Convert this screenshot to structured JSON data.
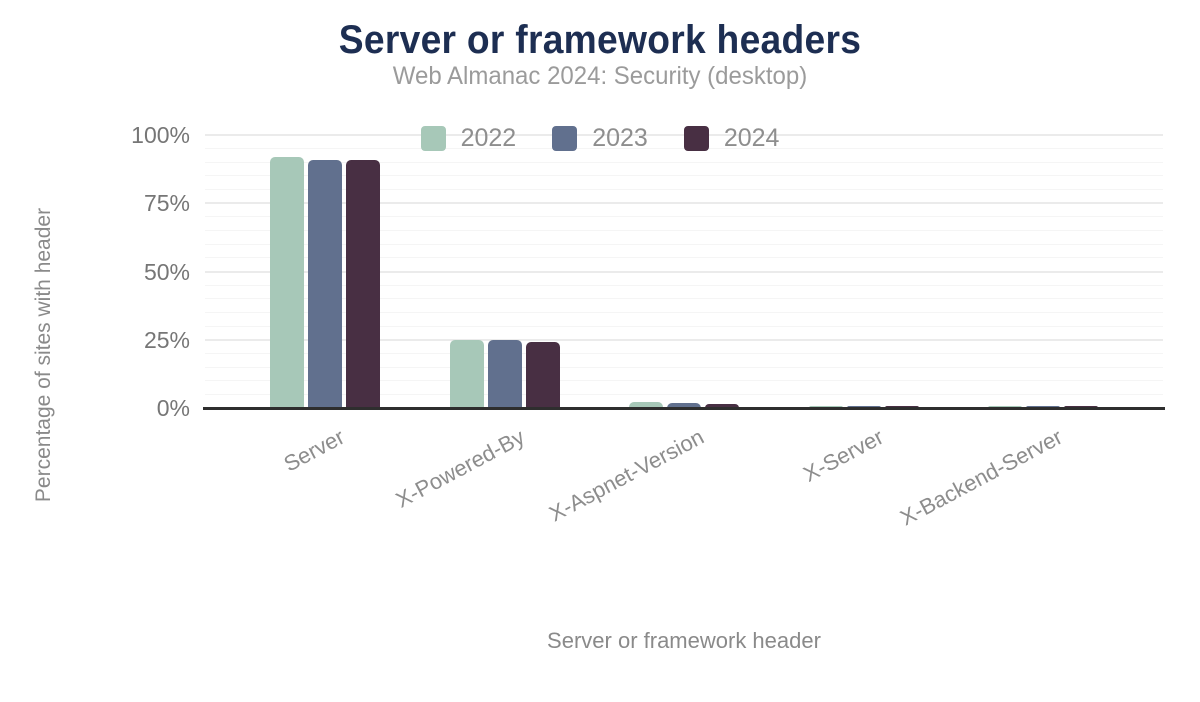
{
  "header": {
    "title": "Server or framework headers",
    "subtitle": "Web Almanac 2024: Security (desktop)"
  },
  "axes": {
    "x_title": "Server or framework header",
    "y_title": "Percentage of sites with header",
    "y_ticks": [
      "0%",
      "25%",
      "50%",
      "75%",
      "100%"
    ]
  },
  "colors": {
    "title_text": "#1d2e52",
    "subtitle_text": "#9b9b9b",
    "axis_text": "#8a8a8a",
    "tick_text": "#767676",
    "axis_line": "#2e2e2e",
    "gridline_major": "#ebebeb",
    "gridline_minor": "#f5f5f5",
    "series_2022": "#a7c8b8",
    "series_2023": "#61708e",
    "series_2024": "#482f43"
  },
  "chart_data": {
    "type": "bar",
    "title": "Server or framework headers",
    "subtitle": "Web Almanac 2024: Security (desktop)",
    "xlabel": "Server or framework header",
    "ylabel": "Percentage of sites with header",
    "ylim": [
      0,
      100
    ],
    "y_unit": "%",
    "y_tick_step_major": 25,
    "y_tick_step_minor": 5,
    "grid": true,
    "legend_position": "top-center",
    "categories": [
      "Server",
      "X-Powered-By",
      "X-Aspnet-Version",
      "X-Server",
      "X-Backend-Server"
    ],
    "series": [
      {
        "name": "2022",
        "color": "#a7c8b8",
        "values": [
          92,
          25,
          2.1,
          0.6,
          0.4
        ]
      },
      {
        "name": "2023",
        "color": "#61708e",
        "values": [
          91,
          25,
          2.0,
          0.6,
          0.4
        ]
      },
      {
        "name": "2024",
        "color": "#482f43",
        "values": [
          91,
          24,
          1.4,
          0.5,
          0.3
        ]
      }
    ]
  }
}
